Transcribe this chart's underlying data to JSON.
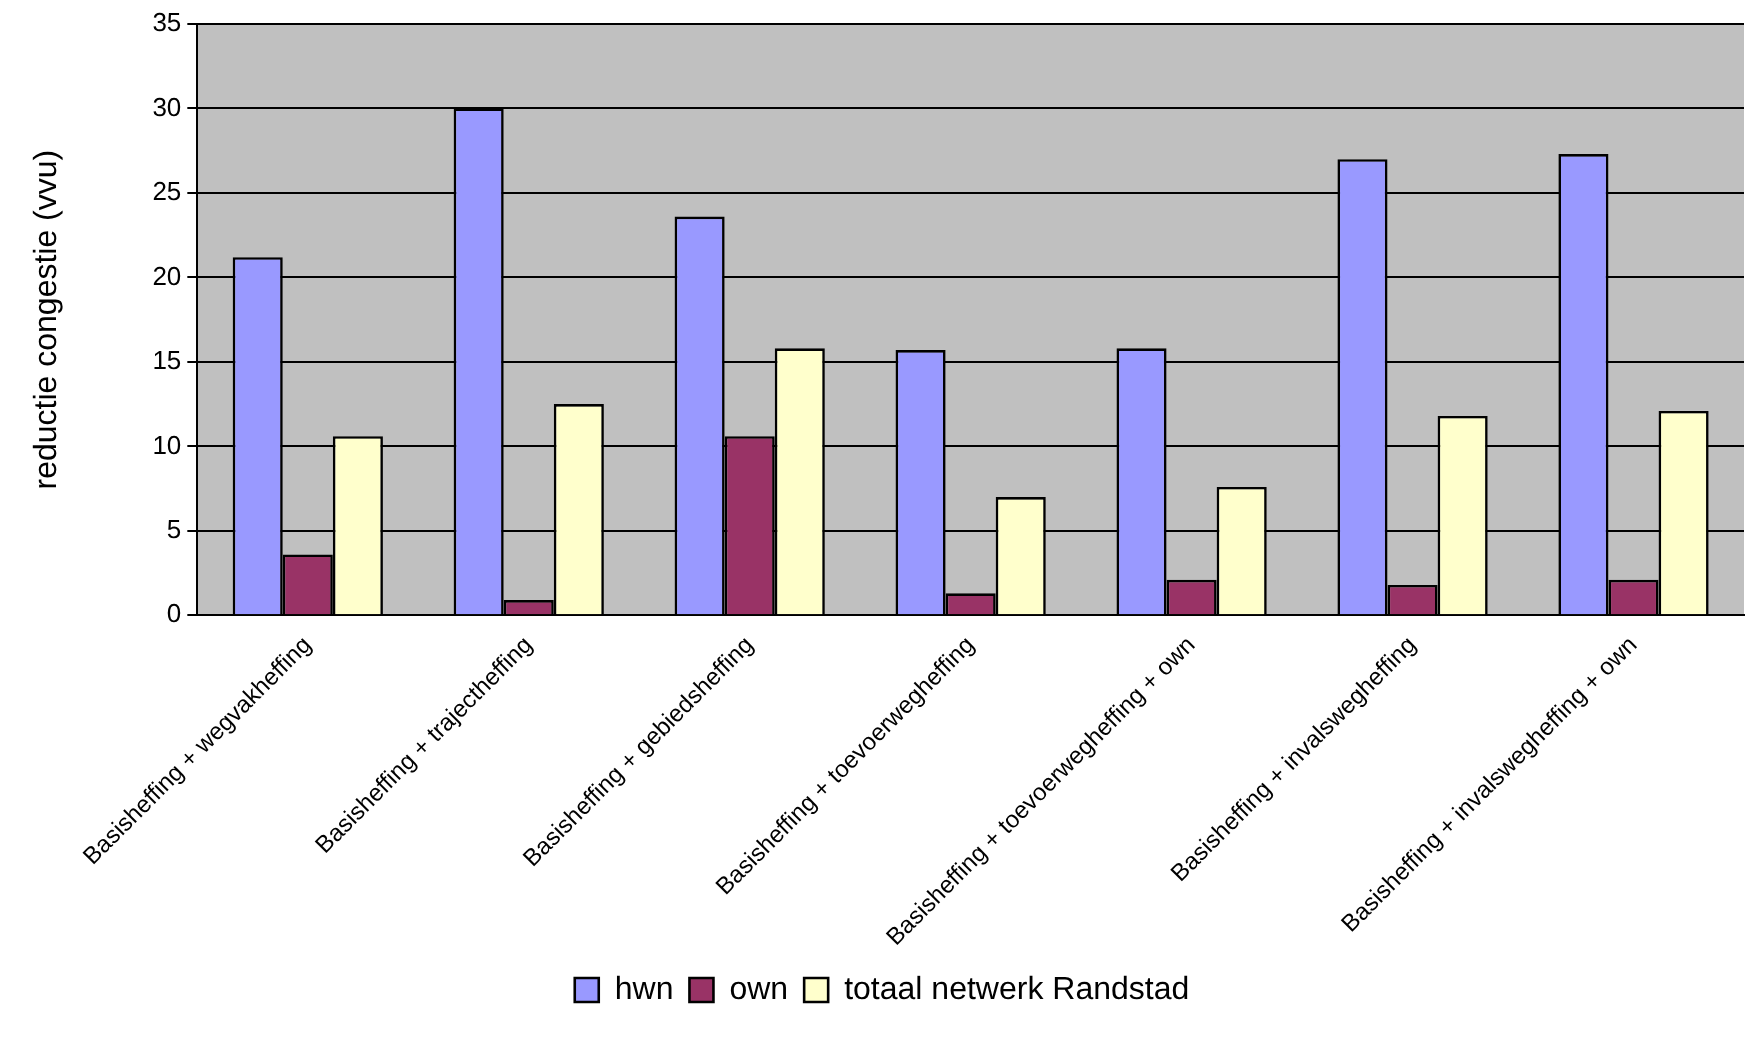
{
  "chart_data": {
    "type": "bar",
    "ylabel": "reductie congestie (vvu)",
    "categories": [
      "Basisheffing + wegvakheffing",
      "Basisheffing + trajectheffing",
      "Basisheffing + gebiedsheffing",
      "Basisheffing + toevoerwegheffing",
      "Basisheffing + toevoerwegheffing + own",
      "Basisheffing + invalswegheffing",
      "Basisheffing + invalswegheffing + own"
    ],
    "series": [
      {
        "name": "hwn",
        "color": "#9999ff",
        "values": [
          21.2,
          30.0,
          23.6,
          15.7,
          15.8,
          27.0,
          27.3
        ]
      },
      {
        "name": "own",
        "color": "#993366",
        "values": [
          3.6,
          0.9,
          10.6,
          1.3,
          2.1,
          1.8,
          2.1
        ]
      },
      {
        "name": "totaal netwerk Randstad",
        "color": "#ffffcc",
        "values": [
          10.6,
          12.5,
          15.8,
          7.0,
          7.6,
          11.8,
          12.1
        ]
      }
    ],
    "ylim": [
      0,
      35
    ],
    "yticks": [
      0,
      5,
      10,
      15,
      20,
      25,
      30,
      35
    ],
    "grid": "y",
    "legend": "bottom"
  }
}
